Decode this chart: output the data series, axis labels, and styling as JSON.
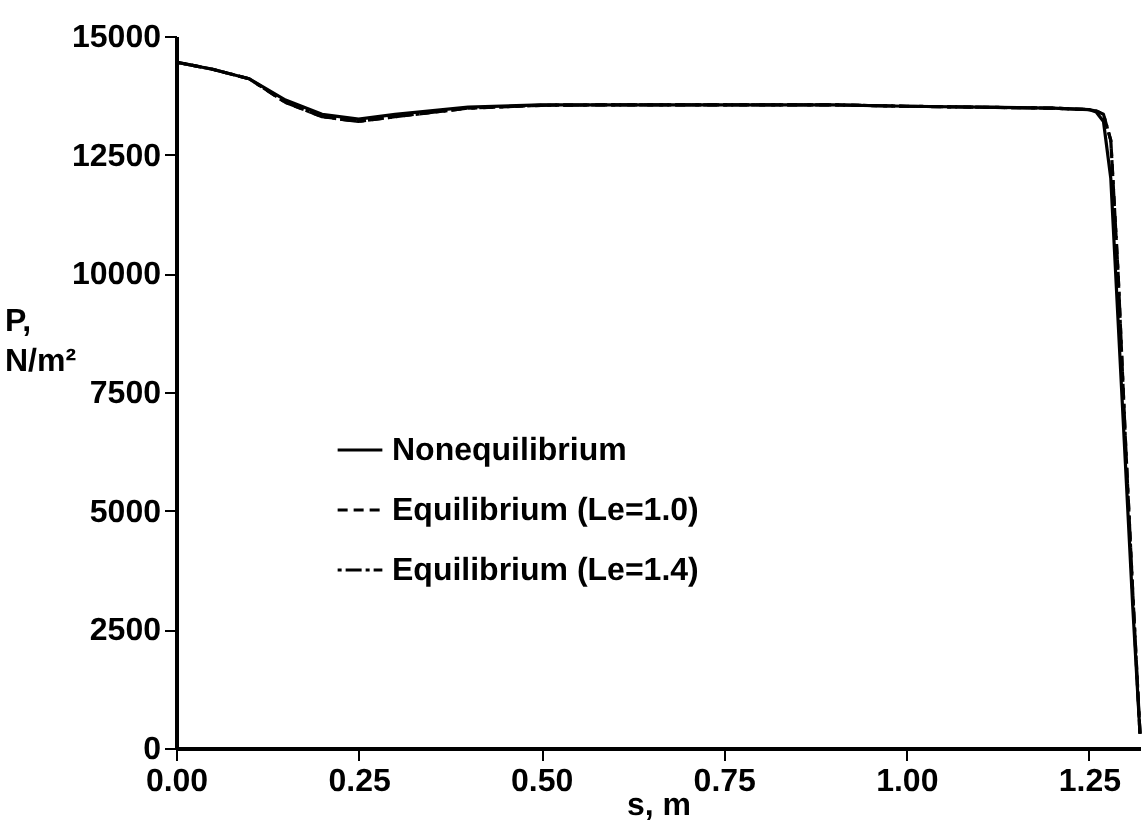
{
  "chart_data": {
    "type": "line",
    "xlabel": "s, m",
    "ylabel": "P, N/m²",
    "xlim": [
      0,
      1.32
    ],
    "ylim": [
      0,
      15000
    ],
    "xticks": [
      {
        "value": 0,
        "label": "0.00"
      },
      {
        "value": 0.25,
        "label": "0.25"
      },
      {
        "value": 0.5,
        "label": "0.50"
      },
      {
        "value": 0.75,
        "label": "0.75"
      },
      {
        "value": 1,
        "label": "1.00"
      },
      {
        "value": 1.25,
        "label": "1.25"
      }
    ],
    "yticks": [
      0,
      2500,
      5000,
      7500,
      10000,
      12500,
      15000
    ],
    "grid": false,
    "legend": "bottom left",
    "marker": "none",
    "series": [
      {
        "name": "Nonequilibrium",
        "color": "#000000",
        "line_style": "solid",
        "x": [
          0,
          0.05,
          0.1,
          0.15,
          0.2,
          0.25,
          0.3,
          0.4,
          0.5,
          0.6,
          0.75,
          0.9,
          1.0,
          1.1,
          1.2,
          1.25,
          1.26,
          1.27,
          1.28,
          1.29,
          1.3,
          1.31,
          1.32
        ],
        "values": [
          14450,
          14300,
          14100,
          13650,
          13350,
          13250,
          13350,
          13500,
          13550,
          13550,
          13550,
          13550,
          13520,
          13500,
          13480,
          13450,
          13400,
          13200,
          12000,
          9000,
          6000,
          3000,
          300
        ]
      },
      {
        "name": "Equilibrium (Le=1.0)",
        "color": "#000000",
        "line_style": "dashed",
        "x": [
          0,
          0.05,
          0.1,
          0.15,
          0.2,
          0.25,
          0.3,
          0.4,
          0.5,
          0.6,
          0.75,
          0.9,
          1.0,
          1.1,
          1.2,
          1.25,
          1.26,
          1.27,
          1.28,
          1.29,
          1.3,
          1.31,
          1.32
        ],
        "values": [
          14450,
          14300,
          14100,
          13600,
          13300,
          13200,
          13300,
          13480,
          13540,
          13550,
          13550,
          13550,
          13520,
          13500,
          13480,
          13450,
          13420,
          13350,
          12800,
          10000,
          6500,
          3300,
          300
        ]
      },
      {
        "name": "Equilibrium (Le=1.4)",
        "color": "#000000",
        "line_style": "dotted",
        "x": [
          0,
          0.05,
          0.1,
          0.15,
          0.2,
          0.25,
          0.3,
          0.4,
          0.5,
          0.6,
          0.75,
          0.9,
          1.0,
          1.1,
          1.2,
          1.25,
          1.26,
          1.27,
          1.28,
          1.29,
          1.3,
          1.31,
          1.32
        ],
        "values": [
          14450,
          14300,
          14100,
          13600,
          13300,
          13200,
          13300,
          13480,
          13540,
          13550,
          13550,
          13550,
          13520,
          13500,
          13480,
          13450,
          13420,
          13350,
          12800,
          10000,
          6500,
          3300,
          300
        ]
      }
    ]
  }
}
